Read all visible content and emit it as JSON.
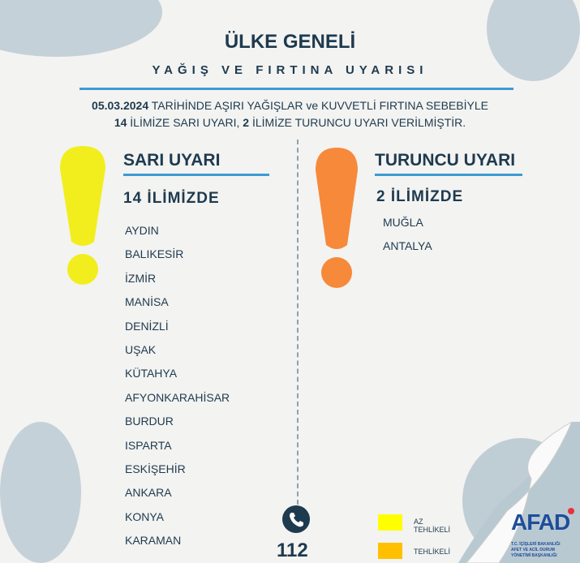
{
  "header": {
    "title": "ÜLKE GENELİ",
    "subtitle": "YAĞIŞ VE FIRTINA UYARISI"
  },
  "info": {
    "date": "05.03.2024",
    "line1_rest": " TARİHİNDE AŞIRI YAĞIŞLAR ve KUVVETLİ FIRTINA SEBEBİYLE",
    "count_yellow": "14",
    "line2_mid": " İLİMİZE SARI UYARI, ",
    "count_orange": "2",
    "line2_rest": " İLİMİZE TURUNCU UYARI VERİLMİŞTİR."
  },
  "yellow": {
    "title": "SARI UYARI",
    "count_label": "14 İLİMİZDE",
    "color": "#f2ee1e",
    "provinces": [
      "AYDIN",
      "BALIKESİR",
      "İZMİR",
      "MANİSA",
      "DENİZLİ",
      "UŞAK",
      "KÜTAHYA",
      "AFYONKARAHİSAR",
      "BURDUR",
      "ISPARTA",
      "ESKİŞEHİR",
      "ANKARA",
      "KONYA",
      "KARAMAN"
    ]
  },
  "orange": {
    "title": "TURUNCU UYARI",
    "count_label": "2 İLİMİZDE",
    "color": "#f7893a",
    "provinces": [
      "MUĞLA",
      "ANTALYA"
    ]
  },
  "emergency": {
    "icon": "phone-icon",
    "number": "112"
  },
  "legend": [
    {
      "label": "AZ TEHLİKELİ",
      "color": "#ffff00"
    },
    {
      "label": "TEHLİKELİ",
      "color": "#ffc000"
    }
  ],
  "logo": {
    "name": "AFAD",
    "line1": "T.C. İÇİŞLERİ BAKANLIĞI",
    "line2": "AFET VE ACİL DURUM",
    "line3": "YÖNETİMİ BAŞKANLIĞI"
  }
}
